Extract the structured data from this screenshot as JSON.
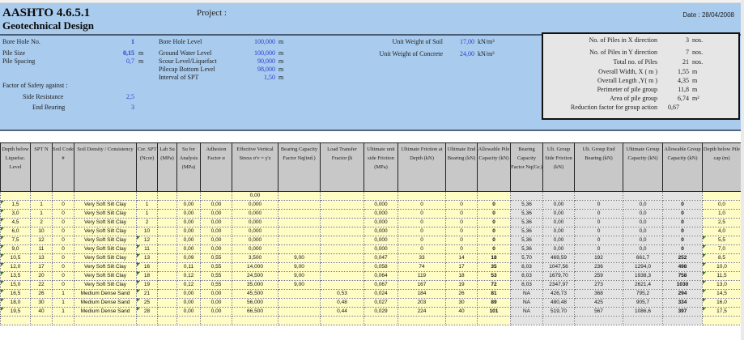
{
  "header": {
    "title_line1": "AASHTO 4.6.5.1",
    "title_line2": "Geotechnical Design",
    "project_label": "Project :",
    "date_label": "Date : 28/04/2008"
  },
  "inputs_left": {
    "bore_hole_no": {
      "label": "Bore Hole No.",
      "value": "1"
    },
    "pile_size": {
      "label": "Pile Size",
      "value": "0,15",
      "unit": "m"
    },
    "pile_spacing": {
      "label": "Pile Spacing",
      "value": "0,7",
      "unit": "m"
    },
    "fos_label": "Factor of Safety against :",
    "side_resistance": {
      "label": "Side Resistance",
      "value": "2,5"
    },
    "end_bearing": {
      "label": "End Bearing",
      "value": "3"
    }
  },
  "inputs_mid": {
    "bore_hole_level": {
      "label": "Bore Hole Level",
      "value": "100,000",
      "unit": "m"
    },
    "ground_water_level": {
      "label": "Ground Water  Level",
      "value": "100,000",
      "unit": "m"
    },
    "scour_level": {
      "label": "Scour Level/Liquefact",
      "value": "90,000",
      "unit": "m"
    },
    "pilecap_bottom_level": {
      "label": "Pilecap Bottom Level",
      "value": "98,000",
      "unit": "m"
    },
    "interval_spt": {
      "label": "Interval of SPT",
      "value": "1,50",
      "unit": "m"
    }
  },
  "inputs_right": {
    "unit_weight_soil": {
      "label": "Unit Weight of Soil",
      "value": "17,00",
      "unit": "kN/m³"
    },
    "unit_weight_concrete": {
      "label": "Unit Weight of Concrete",
      "value": "24,00",
      "unit": "kN/m³"
    }
  },
  "group_box": {
    "rows": [
      {
        "label": "No. of  Piles in X  direction",
        "value": "3",
        "unit": "nos."
      },
      {
        "label": "No. of  Piles in Y  direction",
        "value": "7",
        "unit": "nos."
      },
      {
        "label": "Total no. of  Piles",
        "value": "21",
        "unit": "nos."
      },
      {
        "label": "Overall Width, X ( m )",
        "value": "1,55",
        "unit": "m"
      },
      {
        "label": "Overall Length ,Y( m )",
        "value": "4,35",
        "unit": "m"
      },
      {
        "label": "Perimeter of pile group",
        "value": "11,8",
        "unit": "m"
      },
      {
        "label": "Area of pile group",
        "value": "6,74",
        "unit": "m²"
      },
      {
        "label": "Reduction factor for  group action",
        "value": "0,67",
        "unit": ""
      }
    ]
  },
  "table": {
    "headers": [
      "Depth below Liquefac. Level",
      "SPT N",
      "Soil Code #",
      "Soil Density / Consistency",
      "Cor. SPT (Ncor)",
      "Lab Su (MPa)",
      "Su for Analysis (MPa)",
      "Adhesion Factor α",
      "Effective Vertical Stress σ'v = γ'z",
      "Bearing Capacity Factor Nq(ind.)",
      "Load Transfer Fractor βi",
      "Ultimate unit side Friction (MPa)",
      "Ultimate Friction at Depth (kN)",
      "Ultimate End Bearing (kN)",
      "Allowable Pile Capacity (kN)",
      "Bearing Capacity Factor Nq(Gr.)",
      "Ult. Group Side Friction (kN)",
      "Ult. Group End Bearing (kN)",
      "Ultimate Group Capacity (kN)",
      "Allowable Group Capacity (kN)",
      "Depth below Pile cap (m)"
    ],
    "initial_row": {
      "effective_stress": "0,00"
    },
    "rows": [
      [
        "1,5",
        "1",
        "0",
        "Very Soft Silt Clay",
        "1",
        "",
        "0,00",
        "0,00",
        "0,000",
        "",
        "",
        "0,000",
        "0",
        "0",
        "0",
        "5,36",
        "0,00",
        "0",
        "0,0",
        "0",
        "0,0"
      ],
      [
        "3,0",
        "1",
        "0",
        "Very Soft Silt Clay",
        "1",
        "",
        "0,00",
        "0,00",
        "0,000",
        "",
        "",
        "0,000",
        "0",
        "0",
        "0",
        "5,36",
        "0,00",
        "0",
        "0,0",
        "0",
        "1,0"
      ],
      [
        "4,5",
        "2",
        "0",
        "Very Soft Silt Clay",
        "2",
        "",
        "0,00",
        "0,00",
        "0,000",
        "",
        "",
        "0,000",
        "0",
        "0",
        "0",
        "5,36",
        "0,00",
        "0",
        "0,0",
        "0",
        "2,5"
      ],
      [
        "6,0",
        "10",
        "0",
        "Very Soft Silt Clay",
        "10",
        "",
        "0,00",
        "0,00",
        "0,000",
        "",
        "",
        "0,000",
        "0",
        "0",
        "0",
        "5,36",
        "0,00",
        "0",
        "0,0",
        "0",
        "4,0"
      ],
      [
        "7,5",
        "12",
        "0",
        "Very Soft Silt Clay",
        "12",
        "",
        "0,00",
        "0,00",
        "0,000",
        "",
        "",
        "0,000",
        "0",
        "0",
        "0",
        "5,36",
        "0,00",
        "0",
        "0,0",
        "0",
        "5,5"
      ],
      [
        "9,0",
        "11",
        "0",
        "Very Soft Silt Clay",
        "11",
        "",
        "0,00",
        "0,00",
        "0,000",
        "",
        "",
        "0,000",
        "0",
        "0",
        "0",
        "5,36",
        "0,00",
        "0",
        "0,0",
        "0",
        "7,0"
      ],
      [
        "10,5",
        "13",
        "0",
        "Very Soft Silt Clay",
        "13",
        "",
        "0,09",
        "0,55",
        "3,500",
        "9,00",
        "",
        "0,047",
        "33",
        "14",
        "18",
        "5,70",
        "469,59",
        "192",
        "661,7",
        "252",
        "8,5"
      ],
      [
        "12,0",
        "17",
        "0",
        "Very Soft Silt Clay",
        "16",
        "",
        "0,11",
        "0,55",
        "14,000",
        "9,00",
        "",
        "0,058",
        "74",
        "17",
        "35",
        "8,03",
        "1047,56",
        "236",
        "1294,0",
        "498",
        "10,0"
      ],
      [
        "13,5",
        "20",
        "0",
        "Very Soft Silt Clay",
        "18",
        "",
        "0,12",
        "0,55",
        "24,500",
        "9,00",
        "",
        "0,064",
        "119",
        "18",
        "53",
        "8,03",
        "1679,70",
        "259",
        "1938,3",
        "758",
        "11,5"
      ],
      [
        "15,0",
        "22",
        "0",
        "Very Soft Silt Clay",
        "19",
        "",
        "0,12",
        "0,55",
        "35,000",
        "9,00",
        "",
        "0,067",
        "167",
        "19",
        "72",
        "8,03",
        "2347,97",
        "273",
        "2621,4",
        "1030",
        "13,0"
      ],
      [
        "16,5",
        "26",
        "1",
        "Medium Dense Sand",
        "21",
        "",
        "0,00",
        "0,00",
        "45,500",
        "",
        "0,53",
        "0,024",
        "184",
        "26",
        "81",
        "NA",
        "426,73",
        "368",
        "795,2",
        "294",
        "14,5"
      ],
      [
        "18,0",
        "30",
        "1",
        "Medium Dense Sand",
        "25",
        "",
        "0,00",
        "0,00",
        "56,000",
        "",
        "0,48",
        "0,027",
        "203",
        "30",
        "89",
        "NA",
        "480,48",
        "425",
        "905,7",
        "334",
        "16,0"
      ],
      [
        "19,5",
        "40",
        "1",
        "Medium Dense Sand",
        "28",
        "",
        "0,00",
        "0,00",
        "66,500",
        "",
        "0,44",
        "0,029",
        "224",
        "40",
        "101",
        "NA",
        "519,70",
        "567",
        "1086,6",
        "397",
        "17,5"
      ]
    ]
  },
  "colors": {
    "header_panel": "#a9cbee",
    "input_value": "#2a3fd0",
    "yellow_cell": "#fffcc4",
    "grey_cell": "#e3e3e3",
    "header_cell": "#c8c8c8"
  }
}
